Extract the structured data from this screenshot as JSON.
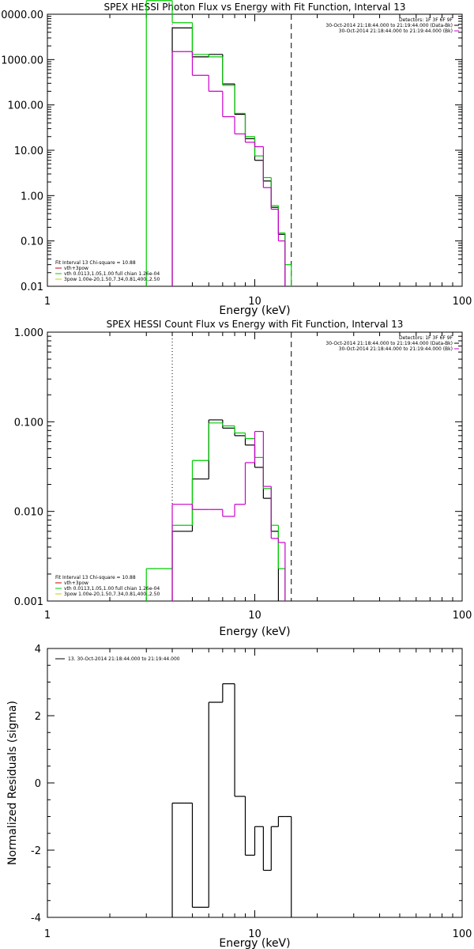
{
  "chart_data": [
    {
      "type": "line",
      "title": "SPEX HESSI Photon Flux vs Energy with Fit Function, Interval 13",
      "xlabel": "Energy (keV)",
      "ylabel": "",
      "xscale": "log",
      "yscale": "log",
      "xlim": [
        1,
        100
      ],
      "ylim": [
        0.01,
        10000
      ],
      "xticks": [
        "1",
        "10",
        "100"
      ],
      "yticks": [
        "0000.00",
        "1000.00",
        "100.00",
        "10.00",
        "1.00",
        "0.10",
        "0.01"
      ],
      "edges": [
        3.0,
        4.0,
        5.0,
        6.0,
        7.0,
        8.0,
        9.0,
        10.0,
        11.0,
        12.0,
        13.0,
        14.0,
        15.0,
        16.0
      ],
      "series": [
        {
          "color": "#000000",
          "values": [
            null,
            5000,
            1150,
            1300,
            290,
            62,
            18,
            6,
            2.1,
            0.55,
            0.14
          ]
        },
        {
          "color": "#00cc00",
          "values": [
            20000,
            6500,
            1300,
            1150,
            270,
            65,
            20,
            7.5,
            2.5,
            0.6,
            0.15,
            0.03
          ]
        },
        {
          "color": "#cc00cc",
          "values": [
            null,
            1500,
            450,
            200,
            55,
            23,
            15,
            12,
            1.5,
            0.5,
            0.1
          ]
        }
      ],
      "vlines": [
        {
          "x": 4.0,
          "style": "dotted",
          "color": "#cc00cc"
        },
        {
          "x": 15.0,
          "style": "dashed",
          "color": "#000000"
        }
      ],
      "legend_top": [
        "Detectors: 1F 3F 6F 9F",
        "30-Oct-2014 21:18:44.000 to 21:19:44.000 (Data-Bk)",
        "30-Oct-2014 21:18:44.000 to 21:19:44.000 (Bk)"
      ],
      "legend_bottom": [
        "Fit Interval 13   Chi-square = 10.88",
        "vth+3pow",
        "vth 0.0113,1.05,1.00  full chian 1.26e-04",
        "3pow 1.00e-20,1.50,7.34,0.81,400.,2.50"
      ]
    },
    {
      "type": "line",
      "title": "SPEX HESSI Count Flux vs Energy with Fit Function, Interval 13",
      "xlabel": "Energy (keV)",
      "ylabel": "",
      "xscale": "log",
      "yscale": "log",
      "xlim": [
        1,
        100
      ],
      "ylim": [
        0.001,
        1
      ],
      "xticks": [
        "1",
        "10",
        "100"
      ],
      "yticks": [
        "1.000",
        "0.100",
        "0.010",
        "0.001"
      ],
      "edges": [
        3.0,
        4.0,
        5.0,
        6.0,
        7.0,
        8.0,
        9.0,
        10.0,
        11.0,
        12.0,
        13.0,
        14.0,
        15.0,
        16.0
      ],
      "series": [
        {
          "color": "#000000",
          "values": [
            null,
            0.006,
            0.023,
            0.105,
            0.085,
            0.07,
            0.055,
            0.031,
            0.014,
            0.006
          ]
        },
        {
          "color": "#00cc00",
          "values": [
            0.0023,
            0.007,
            0.037,
            0.097,
            0.09,
            0.075,
            0.065,
            0.04,
            0.018,
            0.007,
            0.0023
          ]
        },
        {
          "color": "#cc00cc",
          "values": [
            null,
            0.012,
            0.0105,
            0.0105,
            0.0088,
            0.012,
            0.035,
            0.078,
            0.019,
            0.005,
            0.0045
          ]
        }
      ],
      "vlines": [
        {
          "x": 4.0,
          "style": "dotted",
          "color": "#000000"
        },
        {
          "x": 15.0,
          "style": "dashed",
          "color": "#000000"
        }
      ],
      "legend_top": [
        "Detectors: 1F 3F 6F 9F",
        "30-Oct-2014 21:18:44.000 to 21:19:44.000 (Data-Bk)",
        "30-Oct-2014 21:18:44.000 to 21:19:44.000 (Bk)"
      ],
      "legend_bottom": [
        "Fit Interval 13   Chi-square = 10.88",
        "vth+3pow",
        "vth 0.0113,1.05,1.00  full chian 1.26e-04",
        "3pow 1.00e-20,1.50,7.34,0.81,400.,2.50"
      ]
    },
    {
      "type": "line",
      "title": "",
      "xlabel": "Energy (keV)",
      "ylabel": "Normalized Residuals (sigma)",
      "xscale": "log",
      "yscale": "linear",
      "xlim": [
        1,
        100
      ],
      "ylim": [
        -4,
        4
      ],
      "xticks": [
        "1",
        "10",
        "100"
      ],
      "yticks": [
        "4",
        "2",
        "0",
        "-2",
        "-4"
      ],
      "edges": [
        4.0,
        5.0,
        6.0,
        7.0,
        8.0,
        9.0,
        10.0,
        11.0,
        12.0,
        13.0,
        14.0,
        15.0
      ],
      "series": [
        {
          "color": "#000000",
          "values": [
            -0.6,
            -3.7,
            2.4,
            2.95,
            -0.4,
            -2.15,
            -1.3,
            -2.6,
            -1.3,
            -1.0,
            -1.0
          ]
        }
      ],
      "legend_top": [
        "13. 30-Oct-2014 21:18:44.000 to 21:19:44.000"
      ]
    }
  ]
}
